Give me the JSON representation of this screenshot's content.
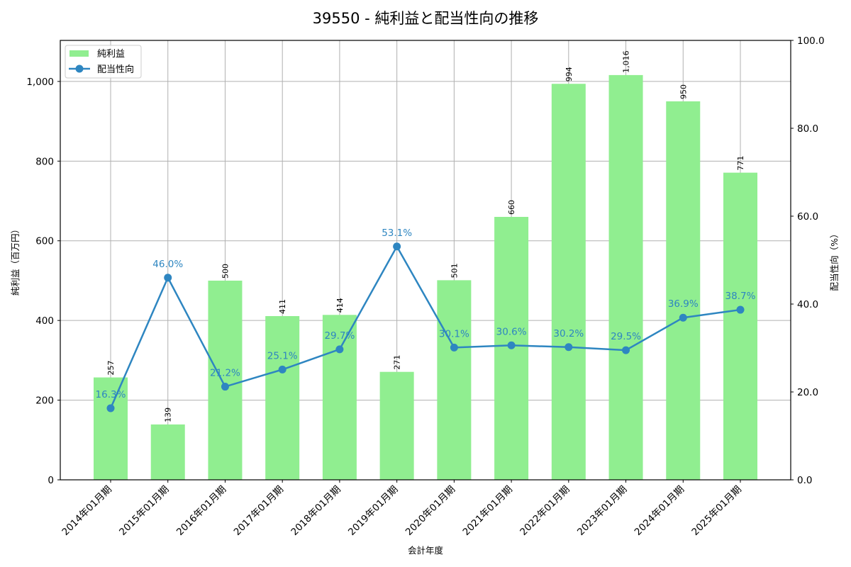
{
  "chart_data": {
    "type": "bar+line",
    "title": "39550 - 純利益と配当性向の推移",
    "xlabel": "会計年度",
    "ylabel_left": "純利益（百万円）",
    "ylabel_right": "配当性向（%）",
    "categories": [
      "2014年01月期",
      "2015年01月期",
      "2016年01月期",
      "2017年01月期",
      "2018年01月期",
      "2019年01月期",
      "2020年01月期",
      "2021年01月期",
      "2022年01月期",
      "2023年01月期",
      "2024年01月期",
      "2025年01月期"
    ],
    "series": [
      {
        "name": "純利益",
        "type": "bar",
        "axis": "left",
        "color": "#90ee90",
        "values": [
          257,
          139,
          500,
          411,
          414,
          271,
          501,
          660,
          994,
          1016,
          950,
          771
        ],
        "labels": [
          "257",
          "139",
          "500",
          "411",
          "414",
          "271",
          "501",
          "660",
          "994",
          "1,016",
          "950",
          "771"
        ]
      },
      {
        "name": "配当性向",
        "type": "line",
        "axis": "right",
        "color": "#2e86c1",
        "values": [
          16.3,
          46.0,
          21.2,
          25.1,
          29.7,
          53.1,
          30.1,
          30.6,
          30.2,
          29.5,
          36.9,
          38.7
        ],
        "labels": [
          "16.3%",
          "46.0%",
          "21.2%",
          "25.1%",
          "29.7%",
          "53.1%",
          "30.1%",
          "30.6%",
          "30.2%",
          "29.5%",
          "36.9%",
          "38.7%"
        ]
      }
    ],
    "ylim_left": [
      0,
      1103
    ],
    "ylim_right": [
      0,
      100
    ],
    "yticks_left": [
      0,
      200,
      400,
      600,
      800,
      1000
    ],
    "yticks_left_labels": [
      "0",
      "200",
      "400",
      "600",
      "800",
      "1,000"
    ],
    "yticks_right": [
      0,
      20,
      40,
      60,
      80,
      100
    ],
    "yticks_right_labels": [
      "0.0",
      "20.0",
      "40.0",
      "60.0",
      "80.0",
      "100.0"
    ],
    "grid": true,
    "legend_position": "upper left"
  }
}
